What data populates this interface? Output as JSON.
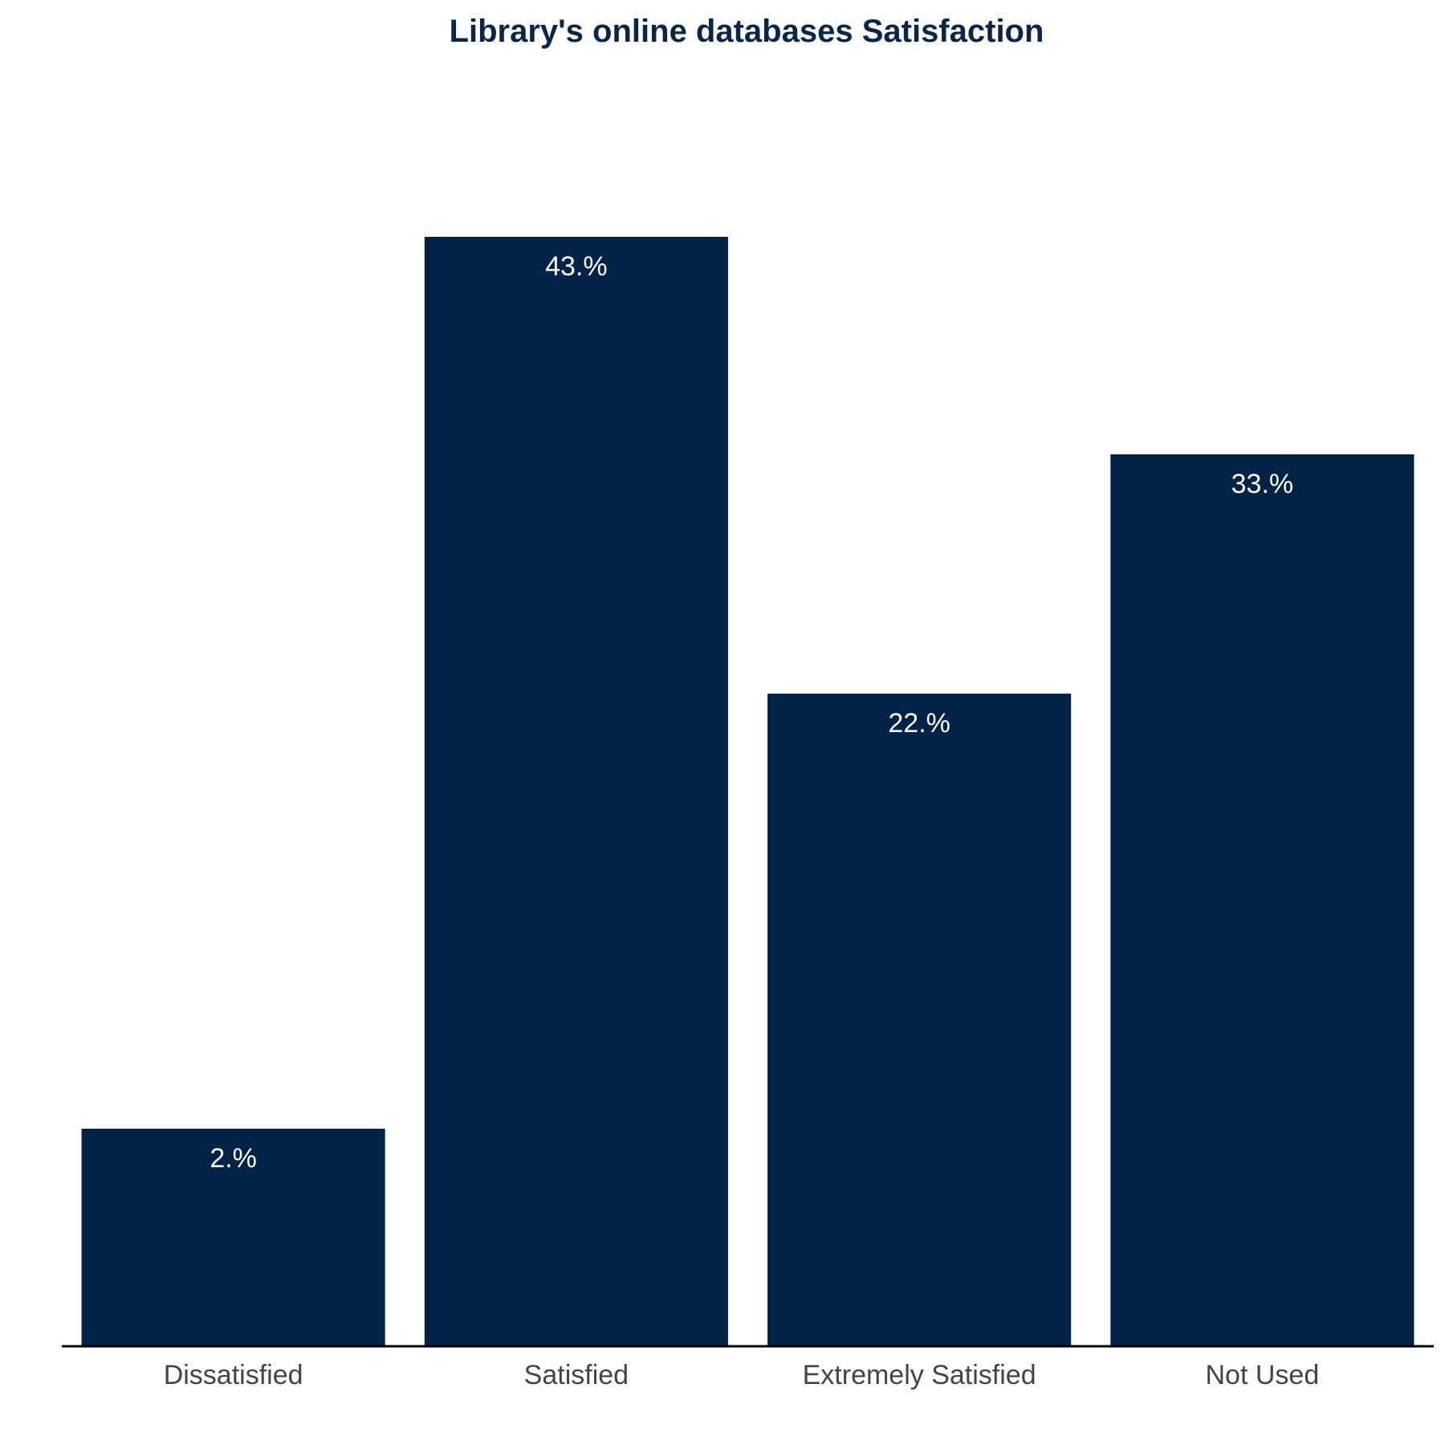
{
  "chart_data": {
    "type": "bar",
    "title": "Library's online databases Satisfaction",
    "xlabel": "",
    "ylabel": "",
    "categories": [
      "Dissatisfied",
      "Satisfied",
      "Extremely Satisfied",
      "Not Used"
    ],
    "values": [
      2,
      43,
      22,
      33
    ],
    "value_labels": [
      "2.%",
      "43.%",
      "22.%",
      "33.%"
    ],
    "ylim": [
      -8,
      43
    ],
    "grid": false,
    "legend": "none",
    "colors": {
      "bar": "#032247",
      "title": "#0a2547",
      "bar_label": "#ffffff",
      "category_label": "#444444",
      "axis_line": "#000000"
    }
  }
}
